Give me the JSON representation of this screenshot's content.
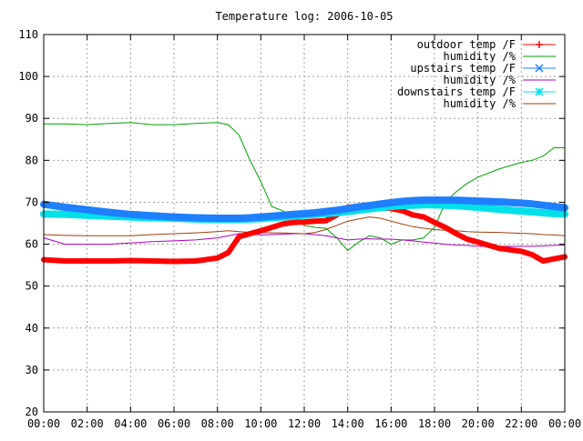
{
  "chart_data": {
    "type": "line",
    "title": "Temperature log: 2006-10-05",
    "xlabel": "",
    "ylabel": "",
    "xlim": [
      "00:00",
      "24:00"
    ],
    "ylim": [
      20,
      110
    ],
    "grid": true,
    "legend_position": "top-right",
    "x_ticks": [
      "00:00",
      "02:00",
      "04:00",
      "06:00",
      "08:00",
      "10:00",
      "12:00",
      "14:00",
      "16:00",
      "18:00",
      "20:00",
      "22:00",
      "00:00"
    ],
    "y_ticks": [
      "20",
      "30",
      "40",
      "50",
      "60",
      "70",
      "80",
      "90",
      "100",
      "110"
    ],
    "x_hours": [
      0,
      1,
      2,
      3,
      4,
      5,
      6,
      7,
      8,
      8.5,
      9,
      9.5,
      10,
      10.5,
      11,
      11.5,
      12,
      12.5,
      13,
      13.5,
      14,
      14.5,
      15,
      15.5,
      16,
      16.5,
      17,
      17.5,
      18,
      18.5,
      19,
      19.5,
      20,
      21,
      22,
      22.5,
      23,
      23.5,
      24
    ],
    "series": [
      {
        "name": "outdoor temp /F",
        "color": "#ff0000",
        "marker": "plus",
        "width": 6,
        "values": [
          56.3,
          56.0,
          56.0,
          56.0,
          56.1,
          56.0,
          55.9,
          56.0,
          56.7,
          58.0,
          61.8,
          62.5,
          63.2,
          64.0,
          64.8,
          65.2,
          65.3,
          65.5,
          65.6,
          67.0,
          68.8,
          69.0,
          69.2,
          68.8,
          68.5,
          68.0,
          67.0,
          66.5,
          65.2,
          64.0,
          62.5,
          61.2,
          60.5,
          59.0,
          58.3,
          57.5,
          56.0,
          56.5,
          57.0
        ]
      },
      {
        "name": "humidity /%",
        "color": "#00a000",
        "marker": "none",
        "width": 1,
        "values": [
          88.7,
          88.7,
          88.5,
          88.8,
          89.0,
          88.5,
          88.5,
          88.8,
          89.0,
          88.5,
          86.0,
          80.0,
          75.0,
          69.0,
          68.0,
          66.5,
          64.5,
          64.0,
          63.8,
          61.5,
          58.5,
          60.5,
          62.0,
          61.5,
          60.0,
          61.0,
          61.0,
          61.5,
          64.0,
          70.0,
          72.5,
          74.5,
          76.0,
          78.0,
          79.5,
          80.0,
          81.0,
          83.0,
          83.0
        ]
      },
      {
        "name": "upstairs temp /F",
        "color": "#1e7fff",
        "marker": "cross",
        "width": 8,
        "values": [
          69.5,
          68.8,
          68.2,
          67.6,
          67.1,
          66.8,
          66.5,
          66.3,
          66.2,
          66.2,
          66.2,
          66.3,
          66.5,
          66.7,
          66.9,
          67.1,
          67.3,
          67.5,
          67.8,
          68.1,
          68.5,
          68.9,
          69.2,
          69.6,
          69.9,
          70.2,
          70.4,
          70.5,
          70.5,
          70.5,
          70.5,
          70.4,
          70.3,
          70.1,
          69.8,
          69.6,
          69.3,
          69.0,
          68.7
        ]
      },
      {
        "name": "humidity /%",
        "color": "#b000c0",
        "marker": "none",
        "width": 1,
        "values": [
          61.5,
          60.0,
          60.0,
          60.0,
          60.3,
          60.6,
          60.8,
          61.0,
          61.5,
          62.0,
          62.5,
          62.5,
          62.2,
          62.3,
          62.4,
          62.5,
          62.5,
          62.3,
          62.0,
          61.5,
          61.0,
          61.2,
          61.3,
          61.2,
          61.2,
          61.0,
          60.8,
          60.5,
          60.3,
          60.0,
          59.8,
          59.7,
          59.5,
          59.5,
          59.5,
          59.5,
          59.6,
          59.7,
          59.8
        ]
      },
      {
        "name": "downstairs temp /F",
        "color": "#00e0e8",
        "marker": "star",
        "width": 8,
        "values": [
          67.2,
          67.1,
          66.9,
          66.7,
          66.5,
          66.3,
          66.2,
          66.0,
          65.9,
          65.9,
          65.9,
          66.0,
          66.1,
          66.3,
          66.5,
          66.7,
          66.9,
          67.1,
          67.3,
          67.5,
          67.8,
          68.1,
          68.4,
          68.7,
          69.0,
          69.2,
          69.3,
          69.4,
          69.4,
          69.3,
          69.2,
          69.0,
          68.8,
          68.3,
          67.9,
          67.7,
          67.5,
          67.3,
          67.2
        ]
      },
      {
        "name": "humidity /%",
        "color": "#a0400a",
        "marker": "none",
        "width": 1,
        "values": [
          62.3,
          62.1,
          62.0,
          62.0,
          62.0,
          62.3,
          62.5,
          62.7,
          63.0,
          63.2,
          63.0,
          62.8,
          62.8,
          62.7,
          62.7,
          62.6,
          62.5,
          62.8,
          63.5,
          64.5,
          65.5,
          66.0,
          66.5,
          66.2,
          65.5,
          64.8,
          64.2,
          63.8,
          63.5,
          63.3,
          63.2,
          63.0,
          62.9,
          62.8,
          62.6,
          62.5,
          62.3,
          62.2,
          62.0
        ]
      }
    ]
  }
}
